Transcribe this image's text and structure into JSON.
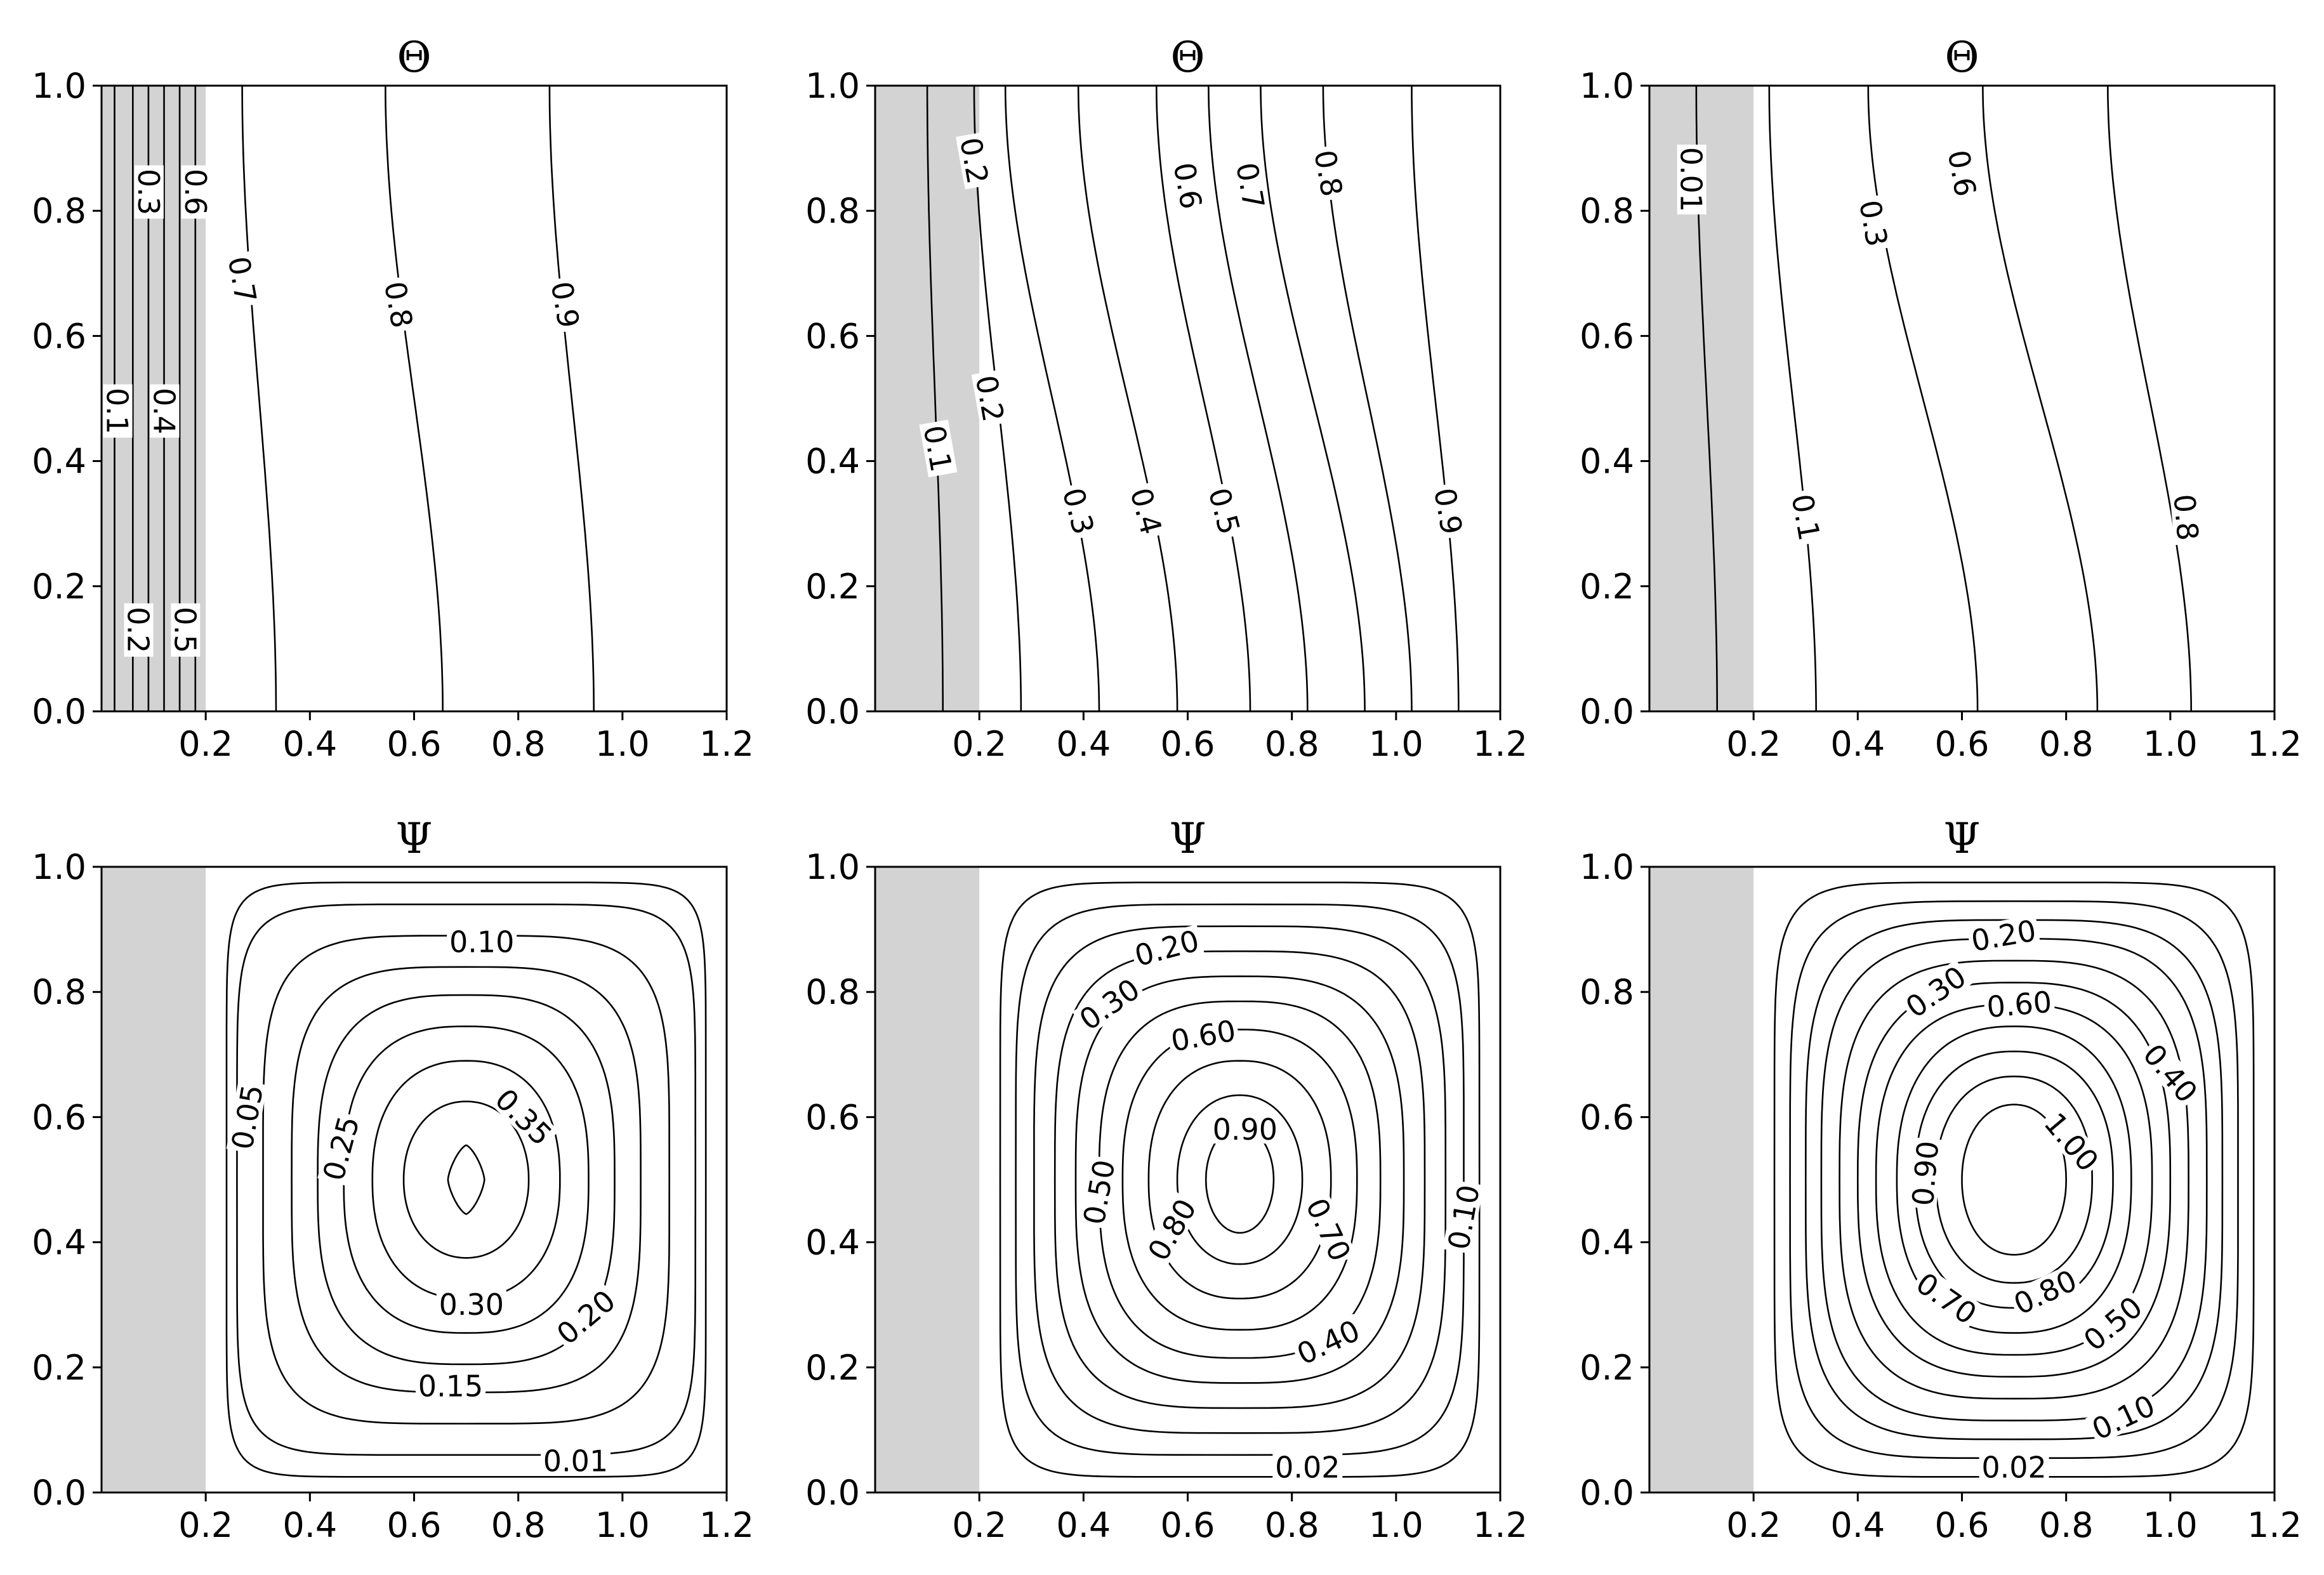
{
  "chart_data": [
    {
      "type": "contour",
      "field": "theta",
      "title": "Θ",
      "xlim": [
        0,
        1.2
      ],
      "ylim": [
        0,
        1.0
      ],
      "xticks": [
        "0.2",
        "0.4",
        "0.6",
        "0.8",
        "1.0",
        "1.2"
      ],
      "yticks": [
        "0.0",
        "0.2",
        "0.4",
        "0.6",
        "0.8",
        "1.0"
      ],
      "solid_region": [
        0,
        0.2
      ],
      "contours": [
        {
          "x_bottom": 0.025,
          "x_top": 0.025
        },
        {
          "x_bottom": 0.06,
          "x_top": 0.06
        },
        {
          "x_bottom": 0.09,
          "x_top": 0.09
        },
        {
          "x_bottom": 0.12,
          "x_top": 0.12
        },
        {
          "x_bottom": 0.15,
          "x_top": 0.15
        },
        {
          "x_bottom": 0.18,
          "x_top": 0.18
        },
        {
          "x_bottom": 0.335,
          "x_top": 0.27
        },
        {
          "x_bottom": 0.655,
          "x_top": 0.545
        },
        {
          "x_bottom": 0.945,
          "x_top": 0.86
        }
      ],
      "labels": [
        {
          "text": "0.1",
          "x": 0.03,
          "y": 0.48,
          "rot": 90
        },
        {
          "text": "0.2",
          "x": 0.07,
          "y": 0.13,
          "rot": 90
        },
        {
          "text": "0.3",
          "x": 0.09,
          "y": 0.83,
          "rot": 90
        },
        {
          "text": "0.4",
          "x": 0.12,
          "y": 0.48,
          "rot": 90
        },
        {
          "text": "0.5",
          "x": 0.16,
          "y": 0.13,
          "rot": 90
        },
        {
          "text": "0.6",
          "x": 0.18,
          "y": 0.83,
          "rot": 90
        },
        {
          "text": "0.7",
          "x": 0.27,
          "y": 0.69,
          "rot": 80
        },
        {
          "text": "0.8",
          "x": 0.57,
          "y": 0.65,
          "rot": 80
        },
        {
          "text": "0.9",
          "x": 0.89,
          "y": 0.65,
          "rot": 80
        }
      ]
    },
    {
      "type": "contour",
      "field": "theta",
      "title": "Θ",
      "xlim": [
        0,
        1.2
      ],
      "ylim": [
        0,
        1.0
      ],
      "xticks": [
        "0.2",
        "0.4",
        "0.6",
        "0.8",
        "1.0",
        "1.2"
      ],
      "yticks": [
        "0.0",
        "0.2",
        "0.4",
        "0.6",
        "0.8",
        "1.0"
      ],
      "solid_region": [
        0,
        0.2
      ],
      "contours": [
        {
          "x_bottom": 0.13,
          "x_top": 0.1
        },
        {
          "x_bottom": 0.28,
          "x_top": 0.19
        },
        {
          "x_bottom": 0.43,
          "x_top": 0.25
        },
        {
          "x_bottom": 0.58,
          "x_top": 0.39
        },
        {
          "x_bottom": 0.72,
          "x_top": 0.54
        },
        {
          "x_bottom": 0.83,
          "x_top": 0.64
        },
        {
          "x_bottom": 0.94,
          "x_top": 0.74
        },
        {
          "x_bottom": 1.03,
          "x_top": 0.86
        },
        {
          "x_bottom": 1.12,
          "x_top": 1.03
        }
      ],
      "labels": [
        {
          "text": "0.2",
          "x": 0.19,
          "y": 0.88,
          "rot": 80
        },
        {
          "text": "0.1",
          "x": 0.12,
          "y": 0.42,
          "rot": 80
        },
        {
          "text": "0.2",
          "x": 0.22,
          "y": 0.5,
          "rot": 80
        },
        {
          "text": "0.3",
          "x": 0.39,
          "y": 0.32,
          "rot": 75
        },
        {
          "text": "0.4",
          "x": 0.52,
          "y": 0.32,
          "rot": 75
        },
        {
          "text": "0.5",
          "x": 0.67,
          "y": 0.32,
          "rot": 75
        },
        {
          "text": "0.6",
          "x": 0.6,
          "y": 0.84,
          "rot": 80
        },
        {
          "text": "0.7",
          "x": 0.72,
          "y": 0.84,
          "rot": 80
        },
        {
          "text": "0.8",
          "x": 0.87,
          "y": 0.86,
          "rot": 80
        },
        {
          "text": "0.9",
          "x": 1.1,
          "y": 0.32,
          "rot": 80
        }
      ]
    },
    {
      "type": "contour",
      "field": "theta",
      "title": "Θ",
      "xlim": [
        0,
        1.2
      ],
      "ylim": [
        0,
        1.0
      ],
      "xticks": [
        "0.2",
        "0.4",
        "0.6",
        "0.8",
        "1.0",
        "1.2"
      ],
      "yticks": [
        "0.0",
        "0.2",
        "0.4",
        "0.6",
        "0.8",
        "1.0"
      ],
      "solid_region": [
        0,
        0.2
      ],
      "contours": [
        {
          "x_bottom": 0.13,
          "x_top": 0.09
        },
        {
          "x_bottom": 0.32,
          "x_top": 0.23
        },
        {
          "x_bottom": 0.63,
          "x_top": 0.42
        },
        {
          "x_bottom": 0.86,
          "x_top": 0.64
        },
        {
          "x_bottom": 1.04,
          "x_top": 0.88
        }
      ],
      "labels": [
        {
          "text": "0.01",
          "x": 0.08,
          "y": 0.85,
          "rot": 90
        },
        {
          "text": "0.1",
          "x": 0.3,
          "y": 0.31,
          "rot": 80
        },
        {
          "text": "0.3",
          "x": 0.43,
          "y": 0.78,
          "rot": 80
        },
        {
          "text": "0.6",
          "x": 0.6,
          "y": 0.86,
          "rot": 80
        },
        {
          "text": "0.8",
          "x": 1.03,
          "y": 0.31,
          "rot": 85
        }
      ]
    },
    {
      "type": "contour",
      "field": "psi",
      "title": "Ψ",
      "xlim": [
        0,
        1.2
      ],
      "ylim": [
        0,
        1.0
      ],
      "xticks": [
        "0.2",
        "0.4",
        "0.6",
        "0.8",
        "1.0",
        "1.2"
      ],
      "yticks": [
        "0.0",
        "0.2",
        "0.4",
        "0.6",
        "0.8",
        "1.0"
      ],
      "solid_region": [
        0,
        0.2
      ],
      "center": [
        0.7,
        0.5
      ],
      "contours": [
        {
          "rx": 0.46,
          "ry": 0.475,
          "n": 10
        },
        {
          "rx": 0.44,
          "ry": 0.44,
          "n": 7
        },
        {
          "rx": 0.39,
          "ry": 0.39,
          "n": 4.5
        },
        {
          "rx": 0.335,
          "ry": 0.34,
          "n": 3.6
        },
        {
          "rx": 0.285,
          "ry": 0.295,
          "n": 3.0
        },
        {
          "rx": 0.235,
          "ry": 0.245,
          "n": 2.6
        },
        {
          "rx": 0.18,
          "ry": 0.19,
          "n": 2.3
        },
        {
          "rx": 0.12,
          "ry": 0.125,
          "n": 2.1
        },
        {
          "rx": 0.035,
          "ry": 0.055,
          "n": 1.4
        }
      ],
      "labels": [
        {
          "text": "0.10",
          "x": 0.73,
          "y": 0.88,
          "rot": 0
        },
        {
          "text": "0.05",
          "x": 0.28,
          "y": 0.6,
          "rot": -80
        },
        {
          "text": "0.25",
          "x": 0.46,
          "y": 0.55,
          "rot": -75
        },
        {
          "text": "0.35",
          "x": 0.81,
          "y": 0.6,
          "rot": 45
        },
        {
          "text": "0.30",
          "x": 0.71,
          "y": 0.3,
          "rot": 0
        },
        {
          "text": "0.20",
          "x": 0.93,
          "y": 0.28,
          "rot": -40
        },
        {
          "text": "0.15",
          "x": 0.67,
          "y": 0.17,
          "rot": 0
        },
        {
          "text": "0.01",
          "x": 0.91,
          "y": 0.05,
          "rot": 0
        }
      ]
    },
    {
      "type": "contour",
      "field": "psi",
      "title": "Ψ",
      "xlim": [
        0,
        1.2
      ],
      "ylim": [
        0,
        1.0
      ],
      "xticks": [
        "0.2",
        "0.4",
        "0.6",
        "0.8",
        "1.0",
        "1.2"
      ],
      "yticks": [
        "0.0",
        "0.2",
        "0.4",
        "0.6",
        "0.8",
        "1.0"
      ],
      "solid_region": [
        0,
        0.2
      ],
      "center": [
        0.7,
        0.5
      ],
      "contours": [
        {
          "rx": 0.46,
          "ry": 0.475,
          "n": 8
        },
        {
          "rx": 0.43,
          "ry": 0.44,
          "n": 5.5
        },
        {
          "rx": 0.395,
          "ry": 0.405,
          "n": 4.2
        },
        {
          "rx": 0.355,
          "ry": 0.365,
          "n": 3.6
        },
        {
          "rx": 0.315,
          "ry": 0.325,
          "n": 3.1
        },
        {
          "rx": 0.27,
          "ry": 0.285,
          "n": 2.8
        },
        {
          "rx": 0.225,
          "ry": 0.24,
          "n": 2.5
        },
        {
          "rx": 0.175,
          "ry": 0.19,
          "n": 2.3
        },
        {
          "rx": 0.12,
          "ry": 0.135,
          "n": 2.1
        },
        {
          "rx": 0.065,
          "ry": 0.085,
          "n": 2.0
        }
      ],
      "labels": [
        {
          "text": "0.20",
          "x": 0.56,
          "y": 0.87,
          "rot": -15
        },
        {
          "text": "0.30",
          "x": 0.45,
          "y": 0.78,
          "rot": -35
        },
        {
          "text": "0.60",
          "x": 0.63,
          "y": 0.73,
          "rot": -10
        },
        {
          "text": "0.90",
          "x": 0.71,
          "y": 0.58,
          "rot": 0
        },
        {
          "text": "0.50",
          "x": 0.43,
          "y": 0.48,
          "rot": -80
        },
        {
          "text": "0.80",
          "x": 0.57,
          "y": 0.42,
          "rot": -60
        },
        {
          "text": "0.70",
          "x": 0.87,
          "y": 0.42,
          "rot": 65
        },
        {
          "text": "0.40",
          "x": 0.87,
          "y": 0.24,
          "rot": -25
        },
        {
          "text": "0.10",
          "x": 1.13,
          "y": 0.44,
          "rot": -80
        },
        {
          "text": "0.02",
          "x": 0.83,
          "y": 0.04,
          "rot": 0
        }
      ]
    },
    {
      "type": "contour",
      "field": "psi",
      "title": "Ψ",
      "xlim": [
        0,
        1.2
      ],
      "ylim": [
        0,
        1.0
      ],
      "xticks": [
        "0.2",
        "0.4",
        "0.6",
        "0.8",
        "1.0",
        "1.2"
      ],
      "yticks": [
        "0.0",
        "0.2",
        "0.4",
        "0.6",
        "0.8",
        "1.0"
      ],
      "solid_region": [
        0,
        0.2
      ],
      "center": [
        0.7,
        0.5
      ],
      "contours": [
        {
          "rx": 0.46,
          "ry": 0.475,
          "n": 7
        },
        {
          "rx": 0.43,
          "ry": 0.445,
          "n": 5
        },
        {
          "rx": 0.4,
          "ry": 0.415,
          "n": 4
        },
        {
          "rx": 0.37,
          "ry": 0.385,
          "n": 3.5
        },
        {
          "rx": 0.335,
          "ry": 0.35,
          "n": 3.1
        },
        {
          "rx": 0.3,
          "ry": 0.315,
          "n": 2.8
        },
        {
          "rx": 0.265,
          "ry": 0.28,
          "n": 2.6
        },
        {
          "rx": 0.225,
          "ry": 0.245,
          "n": 2.4
        },
        {
          "rx": 0.19,
          "ry": 0.205,
          "n": 2.3
        },
        {
          "rx": 0.15,
          "ry": 0.165,
          "n": 2.2
        },
        {
          "rx": 0.1,
          "ry": 0.12,
          "n": 2.1
        }
      ],
      "labels": [
        {
          "text": "0.20",
          "x": 0.68,
          "y": 0.89,
          "rot": -10
        },
        {
          "text": "0.30",
          "x": 0.55,
          "y": 0.8,
          "rot": -35
        },
        {
          "text": "0.60",
          "x": 0.71,
          "y": 0.78,
          "rot": -5
        },
        {
          "text": "0.40",
          "x": 1.0,
          "y": 0.67,
          "rot": 50
        },
        {
          "text": "1.00",
          "x": 0.81,
          "y": 0.56,
          "rot": 50
        },
        {
          "text": "0.90",
          "x": 0.53,
          "y": 0.51,
          "rot": -85
        },
        {
          "text": "0.70",
          "x": 0.57,
          "y": 0.31,
          "rot": 35
        },
        {
          "text": "0.80",
          "x": 0.76,
          "y": 0.32,
          "rot": -25
        },
        {
          "text": "0.50",
          "x": 0.89,
          "y": 0.27,
          "rot": -40
        },
        {
          "text": "0.10",
          "x": 0.91,
          "y": 0.12,
          "rot": -25
        },
        {
          "text": "0.02",
          "x": 0.7,
          "y": 0.04,
          "rot": 0
        }
      ]
    }
  ]
}
